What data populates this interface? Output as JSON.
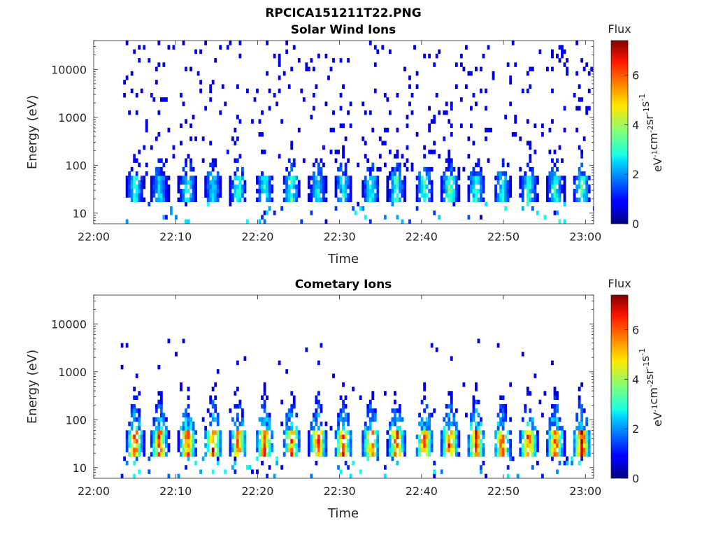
{
  "suptitle": "RPCICA151211T22.PNG",
  "chart_data": [
    {
      "type": "heatmap",
      "title": "Solar Wind Ions",
      "xlabel": "Time",
      "ylabel": "Energy (eV)",
      "x_ticks": [
        "22:00",
        "22:10",
        "22:20",
        "22:30",
        "22:40",
        "22:50",
        "23:00"
      ],
      "xlim_minutes": [
        0,
        61
      ],
      "y_ticks": [
        "10",
        "100",
        "1000",
        "10000"
      ],
      "yscale": "log",
      "ylim": [
        6,
        40000
      ],
      "colorbar": {
        "title": "Flux",
        "label": "eV-1cm-2sr-1s-1",
        "ticks": [
          "0",
          "2",
          "4",
          "6"
        ],
        "range": [
          0,
          7.4
        ],
        "colormap": "jet"
      },
      "pulses": [
        {
          "t": 4.9,
          "peak": 3.3
        },
        {
          "t": 7.9,
          "peak": 3.0
        },
        {
          "t": 11.3,
          "peak": 3.2
        },
        {
          "t": 14.4,
          "peak": 3.0
        },
        {
          "t": 17.5,
          "peak": 3.5
        },
        {
          "t": 20.7,
          "peak": 3.2
        },
        {
          "t": 24.0,
          "peak": 3.6
        },
        {
          "t": 27.2,
          "peak": 3.1
        },
        {
          "t": 30.3,
          "peak": 3.2
        },
        {
          "t": 33.7,
          "peak": 3.3
        },
        {
          "t": 36.8,
          "peak": 3.6
        },
        {
          "t": 40.2,
          "peak": 3.4
        },
        {
          "t": 43.3,
          "peak": 3.9
        },
        {
          "t": 46.5,
          "peak": 3.6
        },
        {
          "t": 49.7,
          "peak": 3.1
        },
        {
          "t": 52.9,
          "peak": 3.5
        },
        {
          "t": 56.2,
          "peak": 3.4
        },
        {
          "t": 59.4,
          "peak": 3.6
        }
      ]
    },
    {
      "type": "heatmap",
      "title": "Cometary Ions",
      "xlabel": "Time",
      "ylabel": "Energy (eV)",
      "x_ticks": [
        "22:00",
        "22:10",
        "22:20",
        "22:30",
        "22:40",
        "22:50",
        "23:00"
      ],
      "xlim_minutes": [
        0,
        61
      ],
      "y_ticks": [
        "10",
        "100",
        "1000",
        "10000"
      ],
      "yscale": "log",
      "ylim": [
        6,
        40000
      ],
      "colorbar": {
        "title": "Flux",
        "label": "eV-1cm-2sr-1s-1",
        "ticks": [
          "0",
          "2",
          "4",
          "6"
        ],
        "range": [
          0,
          7.4
        ],
        "colormap": "jet"
      },
      "pulses": [
        {
          "t": 4.9,
          "peak": 6.3
        },
        {
          "t": 7.9,
          "peak": 6.4
        },
        {
          "t": 11.3,
          "peak": 6.2
        },
        {
          "t": 14.4,
          "peak": 6.5
        },
        {
          "t": 17.5,
          "peak": 6.1
        },
        {
          "t": 20.7,
          "peak": 6.3
        },
        {
          "t": 24.0,
          "peak": 6.2
        },
        {
          "t": 27.2,
          "peak": 6.4
        },
        {
          "t": 30.3,
          "peak": 6.3
        },
        {
          "t": 33.7,
          "peak": 6.2
        },
        {
          "t": 36.8,
          "peak": 6.6
        },
        {
          "t": 40.2,
          "peak": 6.4
        },
        {
          "t": 43.3,
          "peak": 6.7
        },
        {
          "t": 46.5,
          "peak": 6.5
        },
        {
          "t": 49.7,
          "peak": 6.3
        },
        {
          "t": 52.9,
          "peak": 6.6
        },
        {
          "t": 56.2,
          "peak": 6.4
        },
        {
          "t": 59.4,
          "peak": 6.9
        }
      ]
    }
  ]
}
